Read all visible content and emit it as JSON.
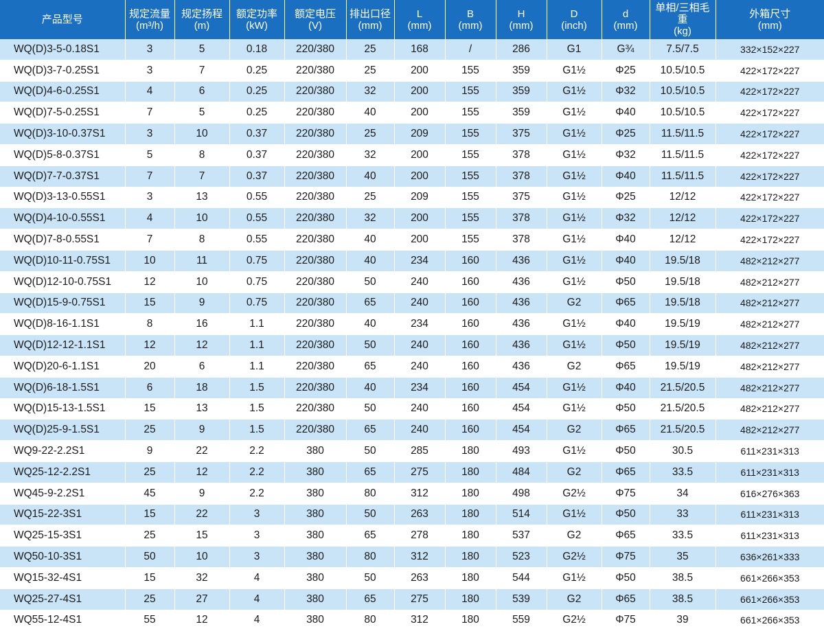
{
  "headers": [
    {
      "line1": "产品型号",
      "line2": ""
    },
    {
      "line1": "规定流量",
      "line2": "(m³/h)"
    },
    {
      "line1": "规定扬程",
      "line2": "(m)"
    },
    {
      "line1": "额定功率",
      "line2": "(kW)"
    },
    {
      "line1": "额定电压",
      "line2": "(V)"
    },
    {
      "line1": "排出口径",
      "line2": "(mm)"
    },
    {
      "line1": "L",
      "line2": "(mm)"
    },
    {
      "line1": "B",
      "line2": "(mm)"
    },
    {
      "line1": "H",
      "line2": "(mm)"
    },
    {
      "line1": "D",
      "line2": "(inch)"
    },
    {
      "line1": "d",
      "line2": "(mm)"
    },
    {
      "line1": "单相/三相毛重",
      "line2": "(kg)"
    },
    {
      "line1": "外箱尺寸",
      "line2": "(mm)"
    }
  ],
  "rows": [
    [
      "WQ(D)3-5-0.18S1",
      "3",
      "5",
      "0.18",
      "220/380",
      "25",
      "168",
      "/",
      "286",
      "G1",
      "G¾",
      "7.5/7.5",
      "332×152×227"
    ],
    [
      "WQ(D)3-7-0.25S1",
      "3",
      "7",
      "0.25",
      "220/380",
      "25",
      "200",
      "155",
      "359",
      "G1½",
      "Φ25",
      "10.5/10.5",
      "422×172×227"
    ],
    [
      "WQ(D)4-6-0.25S1",
      "4",
      "6",
      "0.25",
      "220/380",
      "32",
      "200",
      "155",
      "359",
      "G1½",
      "Φ32",
      "10.5/10.5",
      "422×172×227"
    ],
    [
      "WQ(D)7-5-0.25S1",
      "7",
      "5",
      "0.25",
      "220/380",
      "40",
      "200",
      "155",
      "359",
      "G1½",
      "Φ40",
      "10.5/10.5",
      "422×172×227"
    ],
    [
      "WQ(D)3-10-0.37S1",
      "3",
      "10",
      "0.37",
      "220/380",
      "25",
      "209",
      "155",
      "375",
      "G1½",
      "Φ25",
      "11.5/11.5",
      "422×172×227"
    ],
    [
      "WQ(D)5-8-0.37S1",
      "5",
      "8",
      "0.37",
      "220/380",
      "32",
      "200",
      "155",
      "378",
      "G1½",
      "Φ32",
      "11.5/11.5",
      "422×172×227"
    ],
    [
      "WQ(D)7-7-0.37S1",
      "7",
      "7",
      "0.37",
      "220/380",
      "40",
      "200",
      "155",
      "378",
      "G1½",
      "Φ40",
      "11.5/11.5",
      "422×172×227"
    ],
    [
      "WQ(D)3-13-0.55S1",
      "3",
      "13",
      "0.55",
      "220/380",
      "25",
      "209",
      "155",
      "375",
      "G1½",
      "Φ25",
      "12/12",
      "422×172×227"
    ],
    [
      "WQ(D)4-10-0.55S1",
      "4",
      "10",
      "0.55",
      "220/380",
      "32",
      "200",
      "155",
      "378",
      "G1½",
      "Φ32",
      "12/12",
      "422×172×227"
    ],
    [
      "WQ(D)7-8-0.55S1",
      "7",
      "8",
      "0.55",
      "220/380",
      "40",
      "200",
      "155",
      "378",
      "G1½",
      "Φ40",
      "12/12",
      "422×172×227"
    ],
    [
      "WQ(D)10-11-0.75S1",
      "10",
      "11",
      "0.75",
      "220/380",
      "40",
      "234",
      "160",
      "436",
      "G1½",
      "Φ40",
      "19.5/18",
      "482×212×277"
    ],
    [
      "WQ(D)12-10-0.75S1",
      "12",
      "10",
      "0.75",
      "220/380",
      "50",
      "240",
      "160",
      "436",
      "G1½",
      "Φ50",
      "19.5/18",
      "482×212×277"
    ],
    [
      "WQ(D)15-9-0.75S1",
      "15",
      "9",
      "0.75",
      "220/380",
      "65",
      "240",
      "160",
      "436",
      "G2",
      "Φ65",
      "19.5/18",
      "482×212×277"
    ],
    [
      "WQ(D)8-16-1.1S1",
      "8",
      "16",
      "1.1",
      "220/380",
      "40",
      "234",
      "160",
      "436",
      "G1½",
      "Φ40",
      "19.5/19",
      "482×212×277"
    ],
    [
      "WQ(D)12-12-1.1S1",
      "12",
      "12",
      "1.1",
      "220/380",
      "50",
      "240",
      "160",
      "436",
      "G1½",
      "Φ50",
      "19.5/19",
      "482×212×277"
    ],
    [
      "WQ(D)20-6-1.1S1",
      "20",
      "6",
      "1.1",
      "220/380",
      "65",
      "240",
      "160",
      "436",
      "G2",
      "Φ65",
      "19.5/19",
      "482×212×277"
    ],
    [
      "WQ(D)6-18-1.5S1",
      "6",
      "18",
      "1.5",
      "220/380",
      "40",
      "234",
      "160",
      "454",
      "G1½",
      "Φ40",
      "21.5/20.5",
      "482×212×277"
    ],
    [
      "WQ(D)15-13-1.5S1",
      "15",
      "13",
      "1.5",
      "220/380",
      "50",
      "240",
      "160",
      "454",
      "G1½",
      "Φ50",
      "21.5/20.5",
      "482×212×277"
    ],
    [
      "WQ(D)25-9-1.5S1",
      "25",
      "9",
      "1.5",
      "220/380",
      "65",
      "240",
      "160",
      "454",
      "G2",
      "Φ65",
      "21.5/20.5",
      "482×212×277"
    ],
    [
      "WQ9-22-2.2S1",
      "9",
      "22",
      "2.2",
      "380",
      "50",
      "285",
      "180",
      "493",
      "G1½",
      "Φ50",
      "30.5",
      "611×231×313"
    ],
    [
      "WQ25-12-2.2S1",
      "25",
      "12",
      "2.2",
      "380",
      "65",
      "275",
      "180",
      "484",
      "G2",
      "Φ65",
      "33.5",
      "611×231×313"
    ],
    [
      "WQ45-9-2.2S1",
      "45",
      "9",
      "2.2",
      "380",
      "80",
      "312",
      "180",
      "498",
      "G2½",
      "Φ75",
      "34",
      "616×276×363"
    ],
    [
      "WQ15-22-3S1",
      "15",
      "22",
      "3",
      "380",
      "50",
      "263",
      "180",
      "514",
      "G1½",
      "Φ50",
      "33",
      "611×231×313"
    ],
    [
      "WQ25-15-3S1",
      "25",
      "15",
      "3",
      "380",
      "65",
      "278",
      "180",
      "537",
      "G2",
      "Φ65",
      "33.5",
      "611×231×313"
    ],
    [
      "WQ50-10-3S1",
      "50",
      "10",
      "3",
      "380",
      "80",
      "312",
      "180",
      "523",
      "G2½",
      "Φ75",
      "35",
      "636×261×333"
    ],
    [
      "WQ15-32-4S1",
      "15",
      "32",
      "4",
      "380",
      "50",
      "263",
      "180",
      "544",
      "G1½",
      "Φ50",
      "38.5",
      "661×266×353"
    ],
    [
      "WQ25-27-4S1",
      "25",
      "27",
      "4",
      "380",
      "65",
      "275",
      "180",
      "539",
      "G2",
      "Φ65",
      "38.5",
      "661×266×353"
    ],
    [
      "WQ55-12-4S1",
      "55",
      "12",
      "4",
      "380",
      "80",
      "312",
      "180",
      "559",
      "G2½",
      "Φ75",
      "39",
      "661×266×353"
    ]
  ]
}
